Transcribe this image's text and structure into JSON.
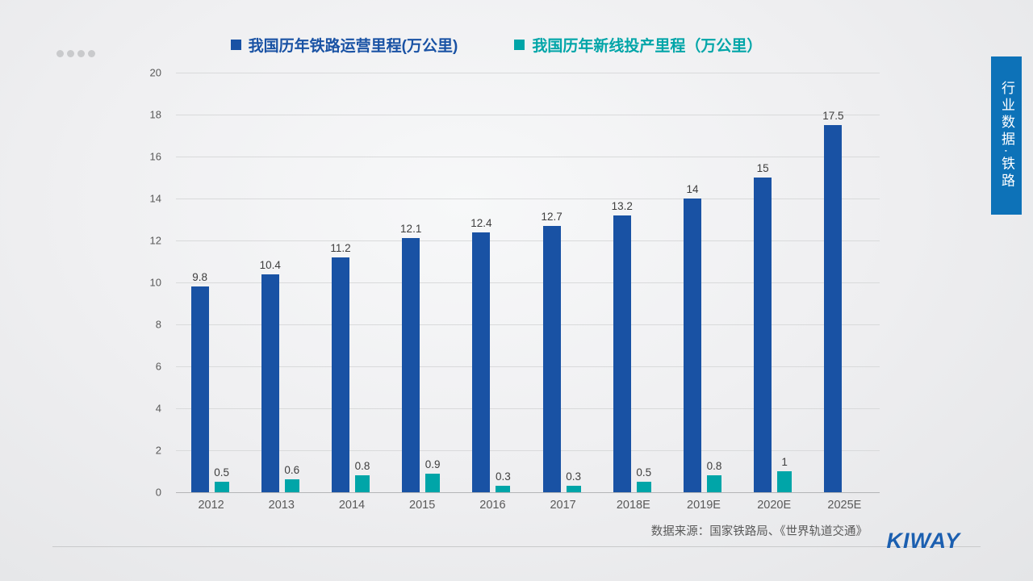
{
  "slide": {
    "side_tab_label": "行业数据·铁路",
    "source_text": "数据来源：国家铁路局、《世界轨道交通》",
    "logo_text": "KIWAY",
    "pagination_dots": 4
  },
  "chart_data": {
    "type": "bar",
    "title": "",
    "xlabel": "",
    "ylabel": "",
    "categories": [
      "2012",
      "2013",
      "2014",
      "2015",
      "2016",
      "2017",
      "2018E",
      "2019E",
      "2020E",
      "2025E"
    ],
    "series": [
      {
        "name": "我国历年铁路运营里程(万公里)",
        "color": "#1952a4",
        "values": [
          9.8,
          10.4,
          11.2,
          12.1,
          12.4,
          12.7,
          13.2,
          14,
          15,
          17.5
        ]
      },
      {
        "name": "我国历年新线投产里程（万公里）",
        "color": "#00a5a8",
        "values": [
          0.5,
          0.6,
          0.8,
          0.9,
          0.3,
          0.3,
          0.5,
          0.8,
          1,
          null
        ]
      }
    ],
    "ylim": [
      0,
      20
    ],
    "ytick_step": 2,
    "grid": true,
    "legend_position": "top"
  }
}
